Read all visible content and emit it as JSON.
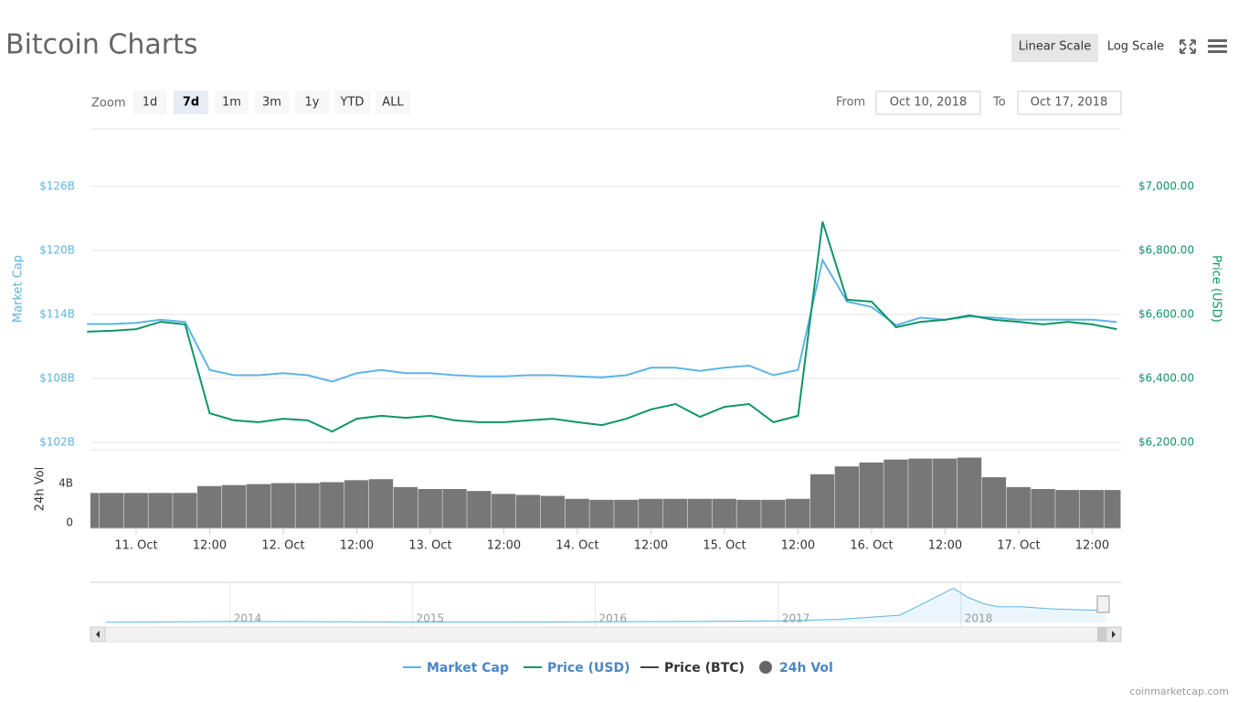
{
  "ui": {
    "title": "Bitcoin Charts",
    "scale_buttons": [
      "Linear Scale",
      "Log Scale"
    ],
    "selected_scale": 0,
    "zoom_label": "Zoom",
    "zoom_buttons": [
      "1d",
      "7d",
      "1m",
      "3m",
      "1y",
      "YTD",
      "ALL"
    ],
    "selected_zoom": 1,
    "from_label": "From",
    "from_date": "Oct 10, 2018",
    "to_label": "To",
    "to_date": "Oct 17, 2018",
    "credit": "coinmarketcap.com"
  },
  "chart_data": [
    {
      "type": "line",
      "ylabel": "Market Cap",
      "y2label": "Price (USD)",
      "xlim": [
        "2018-10-10T16:33",
        "2018-10-17T16:42"
      ],
      "xticks": [
        {
          "value": "2018-10-11T00:00",
          "label": "11. Oct"
        },
        {
          "value": "2018-10-11T12:00",
          "label": "12:00"
        },
        {
          "value": "2018-10-12T00:00",
          "label": "12. Oct"
        },
        {
          "value": "2018-10-12T12:00",
          "label": "12:00"
        },
        {
          "value": "2018-10-13T00:00",
          "label": "13. Oct"
        },
        {
          "value": "2018-10-13T12:00",
          "label": "12:00"
        },
        {
          "value": "2018-10-14T00:00",
          "label": "14. Oct"
        },
        {
          "value": "2018-10-14T12:00",
          "label": "12:00"
        },
        {
          "value": "2018-10-15T00:00",
          "label": "15. Oct"
        },
        {
          "value": "2018-10-15T12:00",
          "label": "12:00"
        },
        {
          "value": "2018-10-16T00:00",
          "label": "16. Oct"
        },
        {
          "value": "2018-10-16T12:00",
          "label": "12:00"
        },
        {
          "value": "2018-10-17T00:00",
          "label": "17. Oct"
        },
        {
          "value": "2018-10-17T12:00",
          "label": "12:00"
        }
      ],
      "ylim": [
        102,
        126
      ],
      "yticks": [
        {
          "value": 102,
          "label": "$102B"
        },
        {
          "value": 108,
          "label": "$108B"
        },
        {
          "value": 114,
          "label": "$114B"
        },
        {
          "value": 120,
          "label": "$120B"
        },
        {
          "value": 126,
          "label": "$126B"
        }
      ],
      "y2lim": [
        6200,
        7000
      ],
      "y2ticks": [
        {
          "value": 6200,
          "label": "$6,200.00"
        },
        {
          "value": 6400,
          "label": "$6,400.00"
        },
        {
          "value": 6600,
          "label": "$6,600.00"
        },
        {
          "value": 6800,
          "label": "$6,800.00"
        },
        {
          "value": 7000,
          "label": "$7,000.00"
        }
      ],
      "grid": true,
      "x": [
        "2018-10-10T16:00",
        "2018-10-10T20:00",
        "2018-10-11T00:00",
        "2018-10-11T04:00",
        "2018-10-11T08:00",
        "2018-10-11T12:00",
        "2018-10-11T16:00",
        "2018-10-11T20:00",
        "2018-10-12T00:00",
        "2018-10-12T04:00",
        "2018-10-12T08:00",
        "2018-10-12T12:00",
        "2018-10-12T16:00",
        "2018-10-12T20:00",
        "2018-10-13T00:00",
        "2018-10-13T04:00",
        "2018-10-13T08:00",
        "2018-10-13T12:00",
        "2018-10-13T16:00",
        "2018-10-13T20:00",
        "2018-10-14T00:00",
        "2018-10-14T04:00",
        "2018-10-14T08:00",
        "2018-10-14T12:00",
        "2018-10-14T16:00",
        "2018-10-14T20:00",
        "2018-10-15T00:00",
        "2018-10-15T04:00",
        "2018-10-15T08:00",
        "2018-10-15T12:00",
        "2018-10-15T16:00",
        "2018-10-15T20:00",
        "2018-10-16T00:00",
        "2018-10-16T04:00",
        "2018-10-16T08:00",
        "2018-10-16T12:00",
        "2018-10-16T16:00",
        "2018-10-16T20:00",
        "2018-10-17T00:00",
        "2018-10-17T04:00",
        "2018-10-17T08:00",
        "2018-10-17T12:00",
        "2018-10-17T16:00"
      ],
      "series": [
        {
          "name": "Market Cap",
          "color": "#5eb4e2",
          "axis": "y",
          "values": [
            113.1,
            113.1,
            113.2,
            113.5,
            113.3,
            108.8,
            108.3,
            108.3,
            108.5,
            108.3,
            107.7,
            108.5,
            108.8,
            108.5,
            108.5,
            108.3,
            108.2,
            108.2,
            108.3,
            108.3,
            108.2,
            108.1,
            108.3,
            109.0,
            109.0,
            108.7,
            109.0,
            109.2,
            108.3,
            108.8,
            119.1,
            115.2,
            114.7,
            113.0,
            113.7,
            113.5,
            113.8,
            113.7,
            113.5,
            113.5,
            113.5,
            113.5,
            113.3
          ]
        },
        {
          "name": "Price (USD)",
          "color": "#0e9567",
          "axis": "y2",
          "values": [
            6546,
            6549,
            6554,
            6577,
            6569,
            6291,
            6269,
            6263,
            6274,
            6269,
            6234,
            6274,
            6283,
            6277,
            6283,
            6269,
            6263,
            6263,
            6269,
            6274,
            6263,
            6254,
            6274,
            6303,
            6320,
            6280,
            6311,
            6320,
            6263,
            6283,
            6890,
            6646,
            6640,
            6560,
            6577,
            6583,
            6597,
            6583,
            6577,
            6569,
            6577,
            6569,
            6554
          ]
        },
        {
          "name": "Price (BTC)",
          "color": "#434348",
          "visible": false
        }
      ]
    },
    {
      "type": "bar",
      "ylabel": "24h Vol",
      "xlim": [
        "2018-10-10T16:33",
        "2018-10-17T16:42"
      ],
      "ylim": [
        0,
        8
      ],
      "yticks": [
        0,
        {
          "value": 4,
          "label": "4B"
        }
      ],
      "x": [
        "2018-10-10T16:00",
        "2018-10-10T20:00",
        "2018-10-11T00:00",
        "2018-10-11T04:00",
        "2018-10-11T08:00",
        "2018-10-11T12:00",
        "2018-10-11T16:00",
        "2018-10-11T20:00",
        "2018-10-12T00:00",
        "2018-10-12T04:00",
        "2018-10-12T08:00",
        "2018-10-12T12:00",
        "2018-10-12T16:00",
        "2018-10-12T20:00",
        "2018-10-13T00:00",
        "2018-10-13T04:00",
        "2018-10-13T08:00",
        "2018-10-13T12:00",
        "2018-10-13T16:00",
        "2018-10-13T20:00",
        "2018-10-14T00:00",
        "2018-10-14T04:00",
        "2018-10-14T08:00",
        "2018-10-14T12:00",
        "2018-10-14T16:00",
        "2018-10-14T20:00",
        "2018-10-15T00:00",
        "2018-10-15T04:00",
        "2018-10-15T08:00",
        "2018-10-15T12:00",
        "2018-10-15T16:00",
        "2018-10-15T20:00",
        "2018-10-16T00:00",
        "2018-10-16T04:00",
        "2018-10-16T08:00",
        "2018-10-16T12:00",
        "2018-10-16T16:00",
        "2018-10-16T20:00",
        "2018-10-17T00:00",
        "2018-10-17T04:00",
        "2018-10-17T08:00",
        "2018-10-17T12:00",
        "2018-10-17T16:00"
      ],
      "series": [
        {
          "name": "24h Vol",
          "color": "#777777",
          "values": [
            3.6,
            3.6,
            3.6,
            3.6,
            3.6,
            4.3,
            4.4,
            4.5,
            4.6,
            4.6,
            4.7,
            4.9,
            5.0,
            4.2,
            4.0,
            4.0,
            3.8,
            3.5,
            3.4,
            3.3,
            3.0,
            2.9,
            2.9,
            3.0,
            3.0,
            3.0,
            3.0,
            2.9,
            2.9,
            3.0,
            5.5,
            6.3,
            6.7,
            7.0,
            7.1,
            7.1,
            7.2,
            5.2,
            4.2,
            4.0,
            3.9,
            3.9,
            3.9
          ]
        }
      ]
    },
    {
      "type": "area",
      "xlim": [
        "2013-03-28",
        "2018-10-17"
      ],
      "ylim": [
        0,
        340
      ],
      "xticks": [
        {
          "value": "2014-01-01",
          "label": "2014"
        },
        {
          "value": "2015-01-01",
          "label": "2015"
        },
        {
          "value": "2016-01-01",
          "label": "2016"
        },
        {
          "value": "2017-01-01",
          "label": "2017"
        },
        {
          "value": "2018-01-01",
          "label": "2018"
        }
      ],
      "x": [
        "2013-04-28",
        "2014-01-01",
        "2014-07-01",
        "2015-01-01",
        "2016-01-01",
        "2016-07-01",
        "2017-01-01",
        "2017-05-01",
        "2017-09-01",
        "2017-12-17",
        "2018-01-15",
        "2018-02-15",
        "2018-03-15",
        "2018-05-01",
        "2018-07-01",
        "2018-10-17"
      ],
      "series": [
        {
          "name": "Market Cap",
          "color": "#5eb4e2",
          "values": [
            1.5,
            10,
            8,
            4,
            6,
            10,
            16,
            30,
            70,
            326,
            240,
            180,
            150,
            150,
            130,
            113
          ]
        }
      ]
    }
  ]
}
